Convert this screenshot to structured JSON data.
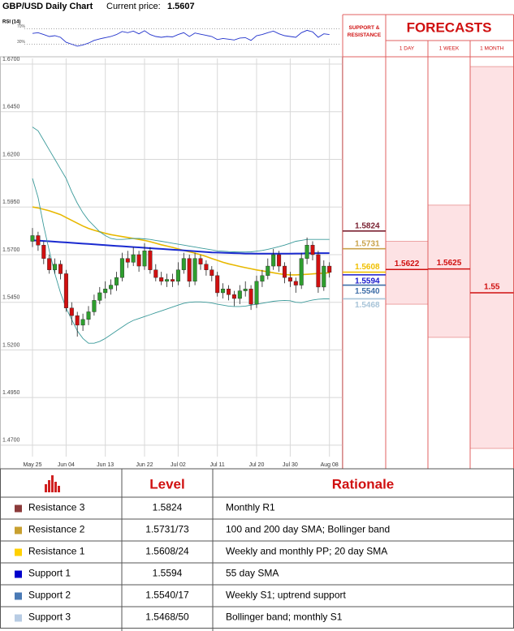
{
  "chart_data": {
    "type": "candlestick",
    "title": "GBP/USD Daily Chart",
    "subtitle": "Current price:",
    "current_price": 1.5607,
    "categories": [
      "May 25",
      null,
      null,
      null,
      null,
      null,
      "Jun 04",
      null,
      null,
      null,
      null,
      null,
      null,
      "Jun 13",
      null,
      null,
      null,
      null,
      null,
      null,
      "Jun 22",
      null,
      null,
      null,
      null,
      null,
      "Jul 02",
      null,
      null,
      null,
      null,
      null,
      null,
      "Jul 11",
      null,
      null,
      null,
      null,
      null,
      null,
      "Jul 20",
      null,
      null,
      null,
      null,
      null,
      "Jul 30",
      null,
      null,
      null,
      null,
      null,
      null,
      "Aug 08"
    ],
    "candles": {
      "open": [
        1.577,
        1.58,
        1.575,
        1.568,
        1.562,
        1.565,
        1.56,
        1.542,
        1.538,
        1.533,
        1.536,
        1.54,
        1.546,
        1.55,
        1.552,
        1.554,
        1.558,
        1.568,
        1.566,
        1.57,
        1.564,
        1.572,
        1.562,
        1.558,
        1.556,
        1.557,
        1.556,
        1.562,
        1.568,
        1.556,
        1.568,
        1.565,
        1.562,
        1.559,
        1.55,
        1.552,
        1.549,
        1.547,
        1.551,
        1.552,
        1.544,
        1.556,
        1.559,
        1.564,
        1.57,
        1.564,
        1.558,
        1.556,
        1.554,
        1.568,
        1.575,
        1.57,
        1.553,
        1.564
      ],
      "high": [
        1.584,
        1.582,
        1.577,
        1.57,
        1.568,
        1.567,
        1.562,
        1.545,
        1.54,
        1.539,
        1.543,
        1.549,
        1.553,
        1.556,
        1.557,
        1.561,
        1.571,
        1.572,
        1.574,
        1.572,
        1.576,
        1.574,
        1.565,
        1.561,
        1.56,
        1.56,
        1.566,
        1.571,
        1.57,
        1.571,
        1.57,
        1.567,
        1.564,
        1.561,
        1.555,
        1.554,
        1.551,
        1.554,
        1.556,
        1.554,
        1.559,
        1.562,
        1.568,
        1.573,
        1.572,
        1.566,
        1.561,
        1.558,
        1.571,
        1.579,
        1.577,
        1.572,
        1.567,
        1.566
      ],
      "low": [
        1.574,
        1.572,
        1.565,
        1.56,
        1.56,
        1.557,
        1.54,
        1.533,
        1.527,
        1.53,
        1.533,
        1.538,
        1.544,
        1.547,
        1.549,
        1.551,
        1.556,
        1.563,
        1.564,
        1.561,
        1.562,
        1.56,
        1.556,
        1.554,
        1.553,
        1.553,
        1.554,
        1.56,
        1.553,
        1.554,
        1.562,
        1.559,
        1.556,
        1.548,
        1.547,
        1.546,
        1.543,
        1.544,
        1.548,
        1.541,
        1.542,
        1.553,
        1.557,
        1.562,
        1.561,
        1.555,
        1.553,
        1.55,
        1.552,
        1.565,
        1.567,
        1.55,
        1.551,
        1.558
      ],
      "close": [
        1.58,
        1.575,
        1.568,
        1.562,
        1.565,
        1.56,
        1.542,
        1.538,
        1.533,
        1.536,
        1.54,
        1.546,
        1.55,
        1.552,
        1.554,
        1.558,
        1.568,
        1.566,
        1.57,
        1.564,
        1.572,
        1.562,
        1.558,
        1.556,
        1.557,
        1.556,
        1.562,
        1.568,
        1.556,
        1.568,
        1.565,
        1.562,
        1.559,
        1.55,
        1.552,
        1.549,
        1.547,
        1.551,
        1.552,
        1.544,
        1.556,
        1.559,
        1.564,
        1.57,
        1.564,
        1.558,
        1.556,
        1.554,
        1.568,
        1.575,
        1.57,
        1.553,
        1.564,
        1.5607
      ],
      "up_color": "#2e9e2e",
      "down_color": "#d01010"
    },
    "lines": [
      {
        "color": "#e8b800",
        "values": [
          1.595,
          1.5945,
          1.5938,
          1.593,
          1.592,
          1.591,
          1.5895,
          1.588,
          1.5865,
          1.585,
          1.5838,
          1.5828,
          1.582,
          1.5812,
          1.5805,
          1.58,
          1.5795,
          1.579,
          1.5785,
          1.578,
          1.5775,
          1.5768,
          1.576,
          1.5752,
          1.5745,
          1.5738,
          1.573,
          1.5722,
          1.5715,
          1.5708,
          1.57,
          1.569,
          1.568,
          1.567,
          1.566,
          1.5652,
          1.5645,
          1.5638,
          1.5632,
          1.5626,
          1.562,
          1.5615,
          1.561,
          1.5605,
          1.56,
          1.5596,
          1.5594,
          1.5594,
          1.5595,
          1.5597,
          1.5599,
          1.5601,
          1.5603,
          1.5605
        ]
      },
      {
        "color": "#1a2ad0",
        "values": [
          1.5775,
          1.5774,
          1.5772,
          1.577,
          1.5768,
          1.5766,
          1.5764,
          1.5762,
          1.576,
          1.5758,
          1.5756,
          1.5754,
          1.5752,
          1.575,
          1.5748,
          1.5746,
          1.5744,
          1.5742,
          1.574,
          1.5738,
          1.5736,
          1.5734,
          1.5732,
          1.573,
          1.5728,
          1.5726,
          1.5724,
          1.5722,
          1.572,
          1.5718,
          1.5716,
          1.5714,
          1.5712,
          1.5711,
          1.571,
          1.5709,
          1.5708,
          1.5707,
          1.5706,
          1.5706,
          1.5705,
          1.5705,
          1.5705,
          1.5705,
          1.5705,
          1.5705,
          1.5705,
          1.5706,
          1.5706,
          1.5707,
          1.5707,
          1.5708,
          1.5708,
          1.5708
        ]
      },
      {
        "color": "#3a9a9a",
        "values": [
          1.637,
          1.635,
          1.63,
          1.625,
          1.62,
          1.615,
          1.61,
          1.603,
          1.597,
          1.592,
          1.588,
          1.585,
          1.582,
          1.58,
          1.5785,
          1.578,
          1.578,
          1.5782,
          1.5785,
          1.5785,
          1.5783,
          1.578,
          1.5775,
          1.577,
          1.5765,
          1.576,
          1.5755,
          1.575,
          1.5745,
          1.574,
          1.5735,
          1.573,
          1.5725,
          1.572,
          1.5718,
          1.5716,
          1.5715,
          1.5714,
          1.5714,
          1.5715,
          1.5718,
          1.5722,
          1.5728,
          1.5735,
          1.5742,
          1.575,
          1.576,
          1.577,
          1.5775,
          1.578,
          1.578,
          1.578,
          1.578,
          1.578
        ]
      },
      {
        "color": "#3a9a9a",
        "values": [
          1.61,
          1.6,
          1.585,
          1.572,
          1.56,
          1.55,
          1.542,
          1.536,
          1.53,
          1.526,
          1.5235,
          1.5235,
          1.5245,
          1.526,
          1.528,
          1.53,
          1.532,
          1.534,
          1.5355,
          1.5365,
          1.5375,
          1.5385,
          1.5395,
          1.5405,
          1.5415,
          1.5425,
          1.5435,
          1.5445,
          1.545,
          1.5452,
          1.5452,
          1.545,
          1.5446,
          1.544,
          1.5435,
          1.543,
          1.5428,
          1.5428,
          1.543,
          1.5435,
          1.544,
          1.5445,
          1.545,
          1.5455,
          1.5458,
          1.546,
          1.5458,
          1.545,
          1.5448,
          1.5455,
          1.5462,
          1.5466,
          1.5468,
          1.5468
        ]
      }
    ],
    "ylim": [
      1.464,
      1.673
    ],
    "yticks": [
      {
        "value": 1.47,
        "label": "1.4700"
      },
      {
        "value": 1.495,
        "label": "1.4950"
      },
      {
        "value": 1.52,
        "label": "1.5200"
      },
      {
        "value": 1.545,
        "label": "1.5450"
      },
      {
        "value": 1.57,
        "label": "1.5700"
      },
      {
        "value": 1.595,
        "label": "1.5950"
      },
      {
        "value": 1.62,
        "label": "1.6200"
      },
      {
        "value": 1.645,
        "label": "1.6450"
      },
      {
        "value": 1.67,
        "label": "1.6700"
      }
    ],
    "grid": true,
    "rsi": {
      "label": "RSI (14)",
      "color": "#2233cc",
      "values": [
        58,
        60,
        55,
        50,
        52,
        48,
        35,
        30,
        25,
        28,
        33,
        40,
        44,
        47,
        50,
        55,
        63,
        60,
        64,
        57,
        65,
        55,
        50,
        48,
        50,
        49,
        55,
        60,
        50,
        59,
        56,
        53,
        50,
        42,
        45,
        43,
        41,
        46,
        47,
        40,
        52,
        55,
        60,
        64,
        57,
        52,
        50,
        48,
        60,
        66,
        62,
        48,
        57,
        55
      ],
      "ylim": [
        10,
        90
      ],
      "yticks": [
        {
          "value": 70,
          "label": "70%"
        },
        {
          "value": 30,
          "label": "30%"
        }
      ]
    },
    "levels": {
      "title": "SUPPORT & RESISTANCE",
      "values": [
        1.5824,
        1.5731,
        1.5608,
        1.5594,
        1.554,
        1.5468
      ],
      "value_labels": [
        "1.5824",
        "1.5731",
        "1.5608",
        "1.5594",
        "1.5540",
        "1.5468"
      ],
      "colors": [
        "#7a2232",
        "#c9a24a",
        "#f0c000",
        "#1a1acc",
        "#3f6fa8",
        "#a8c4d8"
      ]
    },
    "forecasts": {
      "title": "FORECASTS",
      "periods": [
        "1 DAY",
        "1 WEEK",
        "1 MONTH"
      ],
      "values": [
        1.5622,
        1.5625,
        1.55
      ],
      "ranges": [
        [
          1.544,
          1.577
        ],
        [
          1.5266,
          1.596
        ],
        [
          1.4683,
          1.6687
        ]
      ],
      "color": "#d01010",
      "range_color": "#fde2e4"
    }
  },
  "table": {
    "header": [
      "Level",
      "Rationale"
    ],
    "rows": [
      [
        "Resistance 3",
        "1.5824",
        "Monthly R1"
      ],
      [
        "Resistance 2",
        "1.5731/73",
        "100 and 200 day SMA; Bollinger band"
      ],
      [
        "Resistance 1",
        "1.5608/24",
        "Weekly and monthly PP; 20 day SMA"
      ],
      [
        "Support 1",
        "1.5594",
        "55 day SMA"
      ],
      [
        "Support 2",
        "1.5540/17",
        "Weekly S1; uptrend support"
      ],
      [
        "Support 3",
        "1.5468/50",
        "Bollinger band; monthly S1"
      ]
    ],
    "row_colors": [
      "#8b3a3a",
      "#c8a030",
      "#ffd000",
      "#0000cc",
      "#4a7ab5",
      "#b8cce4"
    ]
  }
}
